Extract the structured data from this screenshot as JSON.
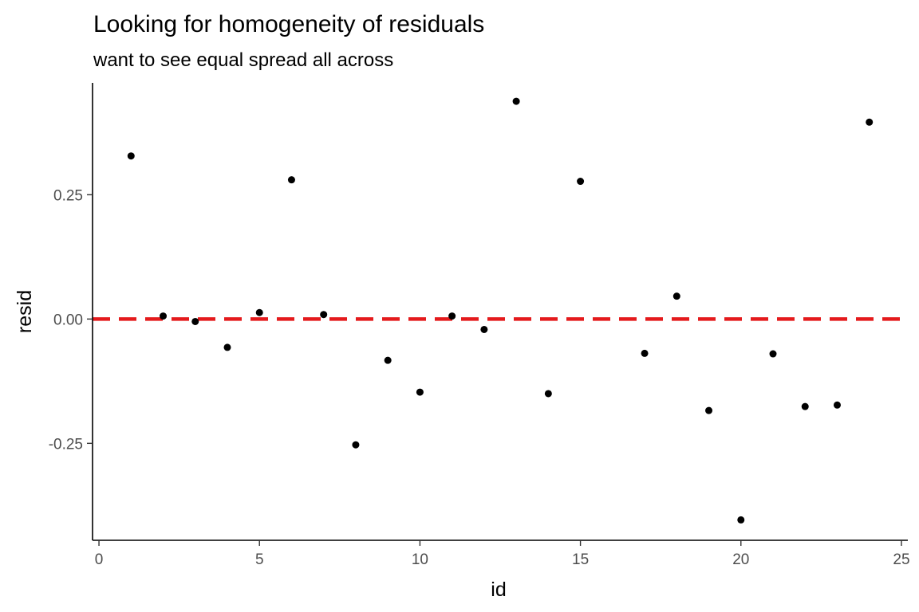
{
  "chart_data": {
    "type": "scatter",
    "title": "Looking for homogeneity of residuals",
    "subtitle": "want to see equal spread all across",
    "xlabel": "id",
    "ylabel": "resid",
    "xlim": [
      -0.2,
      25.2
    ],
    "ylim": [
      -0.445,
      0.475
    ],
    "xticks": [
      0,
      5,
      10,
      15,
      20,
      25
    ],
    "xtick_labels": [
      "0",
      "5",
      "10",
      "15",
      "20",
      "25"
    ],
    "yticks": [
      -0.25,
      0,
      0.25
    ],
    "ytick_labels": [
      "-0.25",
      "0.00",
      "0.25"
    ],
    "grid": false,
    "reference_line": {
      "y": 0,
      "style": "dashed",
      "color": "#e41a1c"
    },
    "point_color": "#000000",
    "points": [
      {
        "x": 1,
        "y": 0.328
      },
      {
        "x": 2,
        "y": 0.006
      },
      {
        "x": 3,
        "y": -0.005
      },
      {
        "x": 4,
        "y": -0.057
      },
      {
        "x": 5,
        "y": 0.013
      },
      {
        "x": 6,
        "y": 0.28
      },
      {
        "x": 7,
        "y": 0.009
      },
      {
        "x": 8,
        "y": -0.253
      },
      {
        "x": 9,
        "y": -0.083
      },
      {
        "x": 10,
        "y": -0.147
      },
      {
        "x": 11,
        "y": 0.006
      },
      {
        "x": 12,
        "y": -0.021
      },
      {
        "x": 13,
        "y": 0.438
      },
      {
        "x": 14,
        "y": -0.15
      },
      {
        "x": 15,
        "y": 0.277
      },
      {
        "x": 17,
        "y": -0.069
      },
      {
        "x": 18,
        "y": 0.046
      },
      {
        "x": 19,
        "y": -0.184
      },
      {
        "x": 20,
        "y": -0.404
      },
      {
        "x": 21,
        "y": -0.07
      },
      {
        "x": 22,
        "y": -0.176
      },
      {
        "x": 23,
        "y": -0.173
      },
      {
        "x": 24,
        "y": 0.396
      }
    ]
  }
}
